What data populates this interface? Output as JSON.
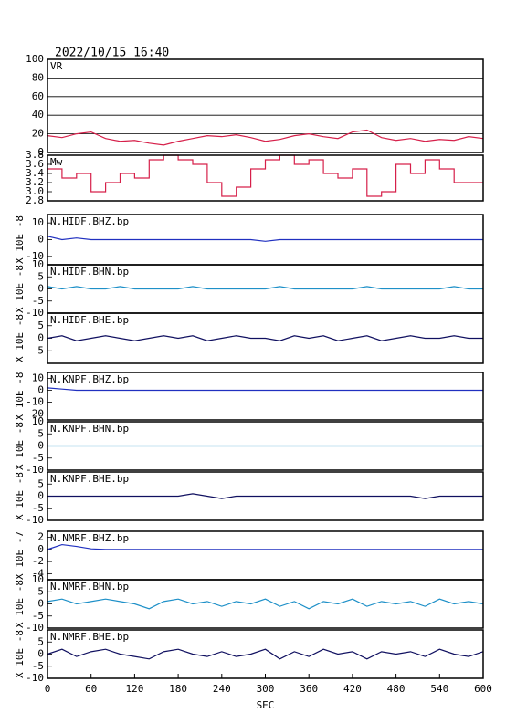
{
  "chart_data": [
    {
      "type": "line",
      "title": "2022/10/15 16:40",
      "label": "VR",
      "color": "#d6204a",
      "grid": true,
      "xlim": [
        0,
        600
      ],
      "ylim": [
        0,
        100
      ],
      "yticks": [
        0,
        20,
        40,
        60,
        80,
        100
      ],
      "x": [
        0,
        20,
        40,
        60,
        80,
        100,
        120,
        140,
        160,
        180,
        200,
        220,
        240,
        260,
        280,
        300,
        320,
        340,
        360,
        380,
        400,
        420,
        440,
        460,
        480,
        500,
        520,
        540,
        560,
        580,
        600
      ],
      "values": [
        18,
        16,
        20,
        22,
        15,
        12,
        13,
        10,
        8,
        12,
        15,
        18,
        17,
        19,
        16,
        12,
        14,
        18,
        20,
        17,
        15,
        22,
        24,
        16,
        13,
        15,
        12,
        14,
        13,
        17,
        15
      ]
    },
    {
      "type": "line",
      "label": "Mw",
      "color": "#d6204a",
      "step": true,
      "xlim": [
        0,
        600
      ],
      "ylim": [
        2.8,
        3.8
      ],
      "yticks": [
        {
          "value": 2.8,
          "label": "2.8"
        },
        {
          "value": 3.0,
          "label": "3.0"
        },
        3.2,
        3.4,
        3.6,
        3.8
      ],
      "x": [
        0,
        20,
        40,
        60,
        80,
        100,
        120,
        140,
        160,
        180,
        200,
        220,
        240,
        260,
        280,
        300,
        320,
        340,
        360,
        380,
        400,
        420,
        440,
        460,
        480,
        500,
        520,
        540,
        560,
        580,
        600
      ],
      "values": [
        3.4,
        3.5,
        3.3,
        3.4,
        3.0,
        3.2,
        3.4,
        3.3,
        3.7,
        3.8,
        3.7,
        3.6,
        3.2,
        2.9,
        3.1,
        3.5,
        3.7,
        3.8,
        3.6,
        3.7,
        3.4,
        3.3,
        3.5,
        2.9,
        3.0,
        3.6,
        3.4,
        3.7,
        3.5,
        3.2,
        3.2
      ]
    },
    {
      "type": "line",
      "label": "N.HIDF.BHZ.bp",
      "ylabel": "X 10E -8",
      "color": "#2030c0",
      "xlim": [
        0,
        600
      ],
      "ylim": [
        -15,
        15
      ],
      "yticks": [
        -10,
        0,
        10
      ],
      "x": [
        0,
        20,
        40,
        60,
        80,
        100,
        120,
        140,
        160,
        180,
        200,
        220,
        240,
        260,
        280,
        300,
        320,
        340,
        360,
        380,
        400,
        420,
        440,
        460,
        480,
        500,
        520,
        540,
        560,
        580,
        600
      ],
      "values": [
        2,
        0,
        1,
        0,
        0,
        0,
        0,
        0,
        0,
        0,
        0,
        0,
        0,
        0,
        0,
        -1,
        0,
        0,
        0,
        0,
        0,
        0,
        0,
        0,
        0,
        0,
        0,
        0,
        0,
        0,
        0
      ]
    },
    {
      "type": "line",
      "label": "N.HIDF.BHN.bp",
      "ylabel": "X 10E -8",
      "color": "#1e90c8",
      "xlim": [
        0,
        600
      ],
      "ylim": [
        -10,
        10
      ],
      "yticks": [
        -10,
        -5,
        0,
        5,
        10
      ],
      "x": [
        0,
        20,
        40,
        60,
        80,
        100,
        120,
        140,
        160,
        180,
        200,
        220,
        240,
        260,
        280,
        300,
        320,
        340,
        360,
        380,
        400,
        420,
        440,
        460,
        480,
        500,
        520,
        540,
        560,
        580,
        600
      ],
      "values": [
        1,
        0,
        1,
        0,
        0,
        1,
        0,
        0,
        0,
        0,
        1,
        0,
        0,
        0,
        0,
        0,
        1,
        0,
        0,
        0,
        0,
        0,
        1,
        0,
        0,
        0,
        0,
        0,
        1,
        0,
        0
      ]
    },
    {
      "type": "line",
      "label": "N.HIDF.BHE.bp",
      "ylabel": "X 10E -8",
      "color": "#101060",
      "xlim": [
        0,
        600
      ],
      "ylim": [
        -10,
        10
      ],
      "yticks": [
        -5,
        0,
        5
      ],
      "x": [
        0,
        20,
        40,
        60,
        80,
        100,
        120,
        140,
        160,
        180,
        200,
        220,
        240,
        260,
        280,
        300,
        320,
        340,
        360,
        380,
        400,
        420,
        440,
        460,
        480,
        500,
        520,
        540,
        560,
        580,
        600
      ],
      "values": [
        0,
        1,
        -1,
        0,
        1,
        0,
        -1,
        0,
        1,
        0,
        1,
        -1,
        0,
        1,
        0,
        0,
        -1,
        1,
        0,
        1,
        -1,
        0,
        1,
        -1,
        0,
        1,
        0,
        0,
        1,
        0,
        0
      ]
    },
    {
      "type": "line",
      "label": "N.KNPF.BHZ.bp",
      "ylabel": "X 10E -8",
      "color": "#2030c0",
      "xlim": [
        0,
        600
      ],
      "ylim": [
        -25,
        15
      ],
      "yticks": [
        -20,
        -10,
        0,
        10
      ],
      "x": [
        0,
        20,
        40,
        60,
        80,
        100,
        120,
        140,
        160,
        180,
        200,
        220,
        240,
        260,
        280,
        300,
        320,
        340,
        360,
        380,
        400,
        420,
        440,
        460,
        480,
        500,
        520,
        540,
        560,
        580,
        600
      ],
      "values": [
        2,
        1,
        0,
        0,
        0,
        0,
        0,
        0,
        0,
        0,
        0,
        0,
        0,
        0,
        0,
        0,
        0,
        0,
        0,
        0,
        0,
        0,
        0,
        0,
        0,
        0,
        0,
        0,
        0,
        0,
        0
      ]
    },
    {
      "type": "line",
      "label": "N.KNPF.BHN.bp",
      "ylabel": "X 10E -8",
      "color": "#1e90c8",
      "xlim": [
        0,
        600
      ],
      "ylim": [
        -10,
        10
      ],
      "yticks": [
        -10,
        -5,
        0,
        5,
        10
      ],
      "x": [
        0,
        20,
        40,
        60,
        80,
        100,
        120,
        140,
        160,
        180,
        200,
        220,
        240,
        260,
        280,
        300,
        320,
        340,
        360,
        380,
        400,
        420,
        440,
        460,
        480,
        500,
        520,
        540,
        560,
        580,
        600
      ],
      "values": [
        0,
        0,
        0,
        0,
        0,
        0,
        0,
        0,
        0,
        0,
        0,
        0,
        0,
        0,
        0,
        0,
        0,
        0,
        0,
        0,
        0,
        0,
        0,
        0,
        0,
        0,
        0,
        0,
        0,
        0,
        0
      ]
    },
    {
      "type": "line",
      "label": "N.KNPF.BHE.bp",
      "ylabel": "X 10E -8",
      "color": "#101060",
      "xlim": [
        0,
        600
      ],
      "ylim": [
        -10,
        10
      ],
      "yticks": [
        -10,
        -5,
        0,
        5
      ],
      "x": [
        0,
        20,
        40,
        60,
        80,
        100,
        120,
        140,
        160,
        180,
        200,
        220,
        240,
        260,
        280,
        300,
        320,
        340,
        360,
        380,
        400,
        420,
        440,
        460,
        480,
        500,
        520,
        540,
        560,
        580,
        600
      ],
      "values": [
        0,
        0,
        0,
        0,
        0,
        0,
        0,
        0,
        0,
        0,
        1,
        0,
        -1,
        0,
        0,
        0,
        0,
        0,
        0,
        0,
        0,
        0,
        0,
        0,
        0,
        0,
        -1,
        0,
        0,
        0,
        0
      ]
    },
    {
      "type": "line",
      "label": "N.NMRF.BHZ.bp",
      "ylabel": "X 10E -7",
      "color": "#2030c0",
      "xlim": [
        0,
        600
      ],
      "ylim": [
        -5,
        3
      ],
      "yticks": [
        -4,
        -2,
        0,
        2
      ],
      "x": [
        0,
        20,
        40,
        60,
        80,
        100,
        120,
        140,
        160,
        180,
        200,
        220,
        240,
        260,
        280,
        300,
        320,
        340,
        360,
        380,
        400,
        420,
        440,
        460,
        480,
        500,
        520,
        540,
        560,
        580,
        600
      ],
      "values": [
        0,
        0.8,
        0.5,
        0.1,
        0,
        0,
        0,
        0,
        0,
        0,
        0,
        0,
        0,
        0,
        0,
        0,
        0,
        0,
        0,
        0,
        0,
        0,
        0,
        0,
        0,
        0,
        0,
        0,
        0,
        0,
        0
      ]
    },
    {
      "type": "line",
      "label": "N.NMRF.BHN.bp",
      "ylabel": "X 10E -8",
      "color": "#1e90c8",
      "xlim": [
        0,
        600
      ],
      "ylim": [
        -10,
        10
      ],
      "yticks": [
        -10,
        -5,
        0,
        5,
        10
      ],
      "x": [
        0,
        20,
        40,
        60,
        80,
        100,
        120,
        140,
        160,
        180,
        200,
        220,
        240,
        260,
        280,
        300,
        320,
        340,
        360,
        380,
        400,
        420,
        440,
        460,
        480,
        500,
        520,
        540,
        560,
        580,
        600
      ],
      "values": [
        1,
        2,
        0,
        1,
        2,
        1,
        0,
        -2,
        1,
        2,
        0,
        1,
        -1,
        1,
        0,
        2,
        -1,
        1,
        -2,
        1,
        0,
        2,
        -1,
        1,
        0,
        1,
        -1,
        2,
        0,
        1,
        0
      ]
    },
    {
      "type": "line",
      "label": "N.NMRF.BHE.bp",
      "ylabel": "X 10E -8",
      "xlabel": "SEC",
      "color": "#101060",
      "xlim": [
        0,
        600
      ],
      "ylim": [
        -10,
        10
      ],
      "yticks": [
        -10,
        -5,
        0,
        5
      ],
      "xticks": [
        0,
        60,
        120,
        180,
        240,
        300,
        360,
        420,
        480,
        540,
        600
      ],
      "x": [
        0,
        20,
        40,
        60,
        80,
        100,
        120,
        140,
        160,
        180,
        200,
        220,
        240,
        260,
        280,
        300,
        320,
        340,
        360,
        380,
        400,
        420,
        440,
        460,
        480,
        500,
        520,
        540,
        560,
        580,
        600
      ],
      "values": [
        0,
        2,
        -1,
        1,
        2,
        0,
        -1,
        -2,
        1,
        2,
        0,
        -1,
        1,
        -1,
        0,
        2,
        -2,
        1,
        -1,
        2,
        0,
        1,
        -2,
        1,
        0,
        1,
        -1,
        2,
        0,
        -1,
        1
      ]
    }
  ]
}
